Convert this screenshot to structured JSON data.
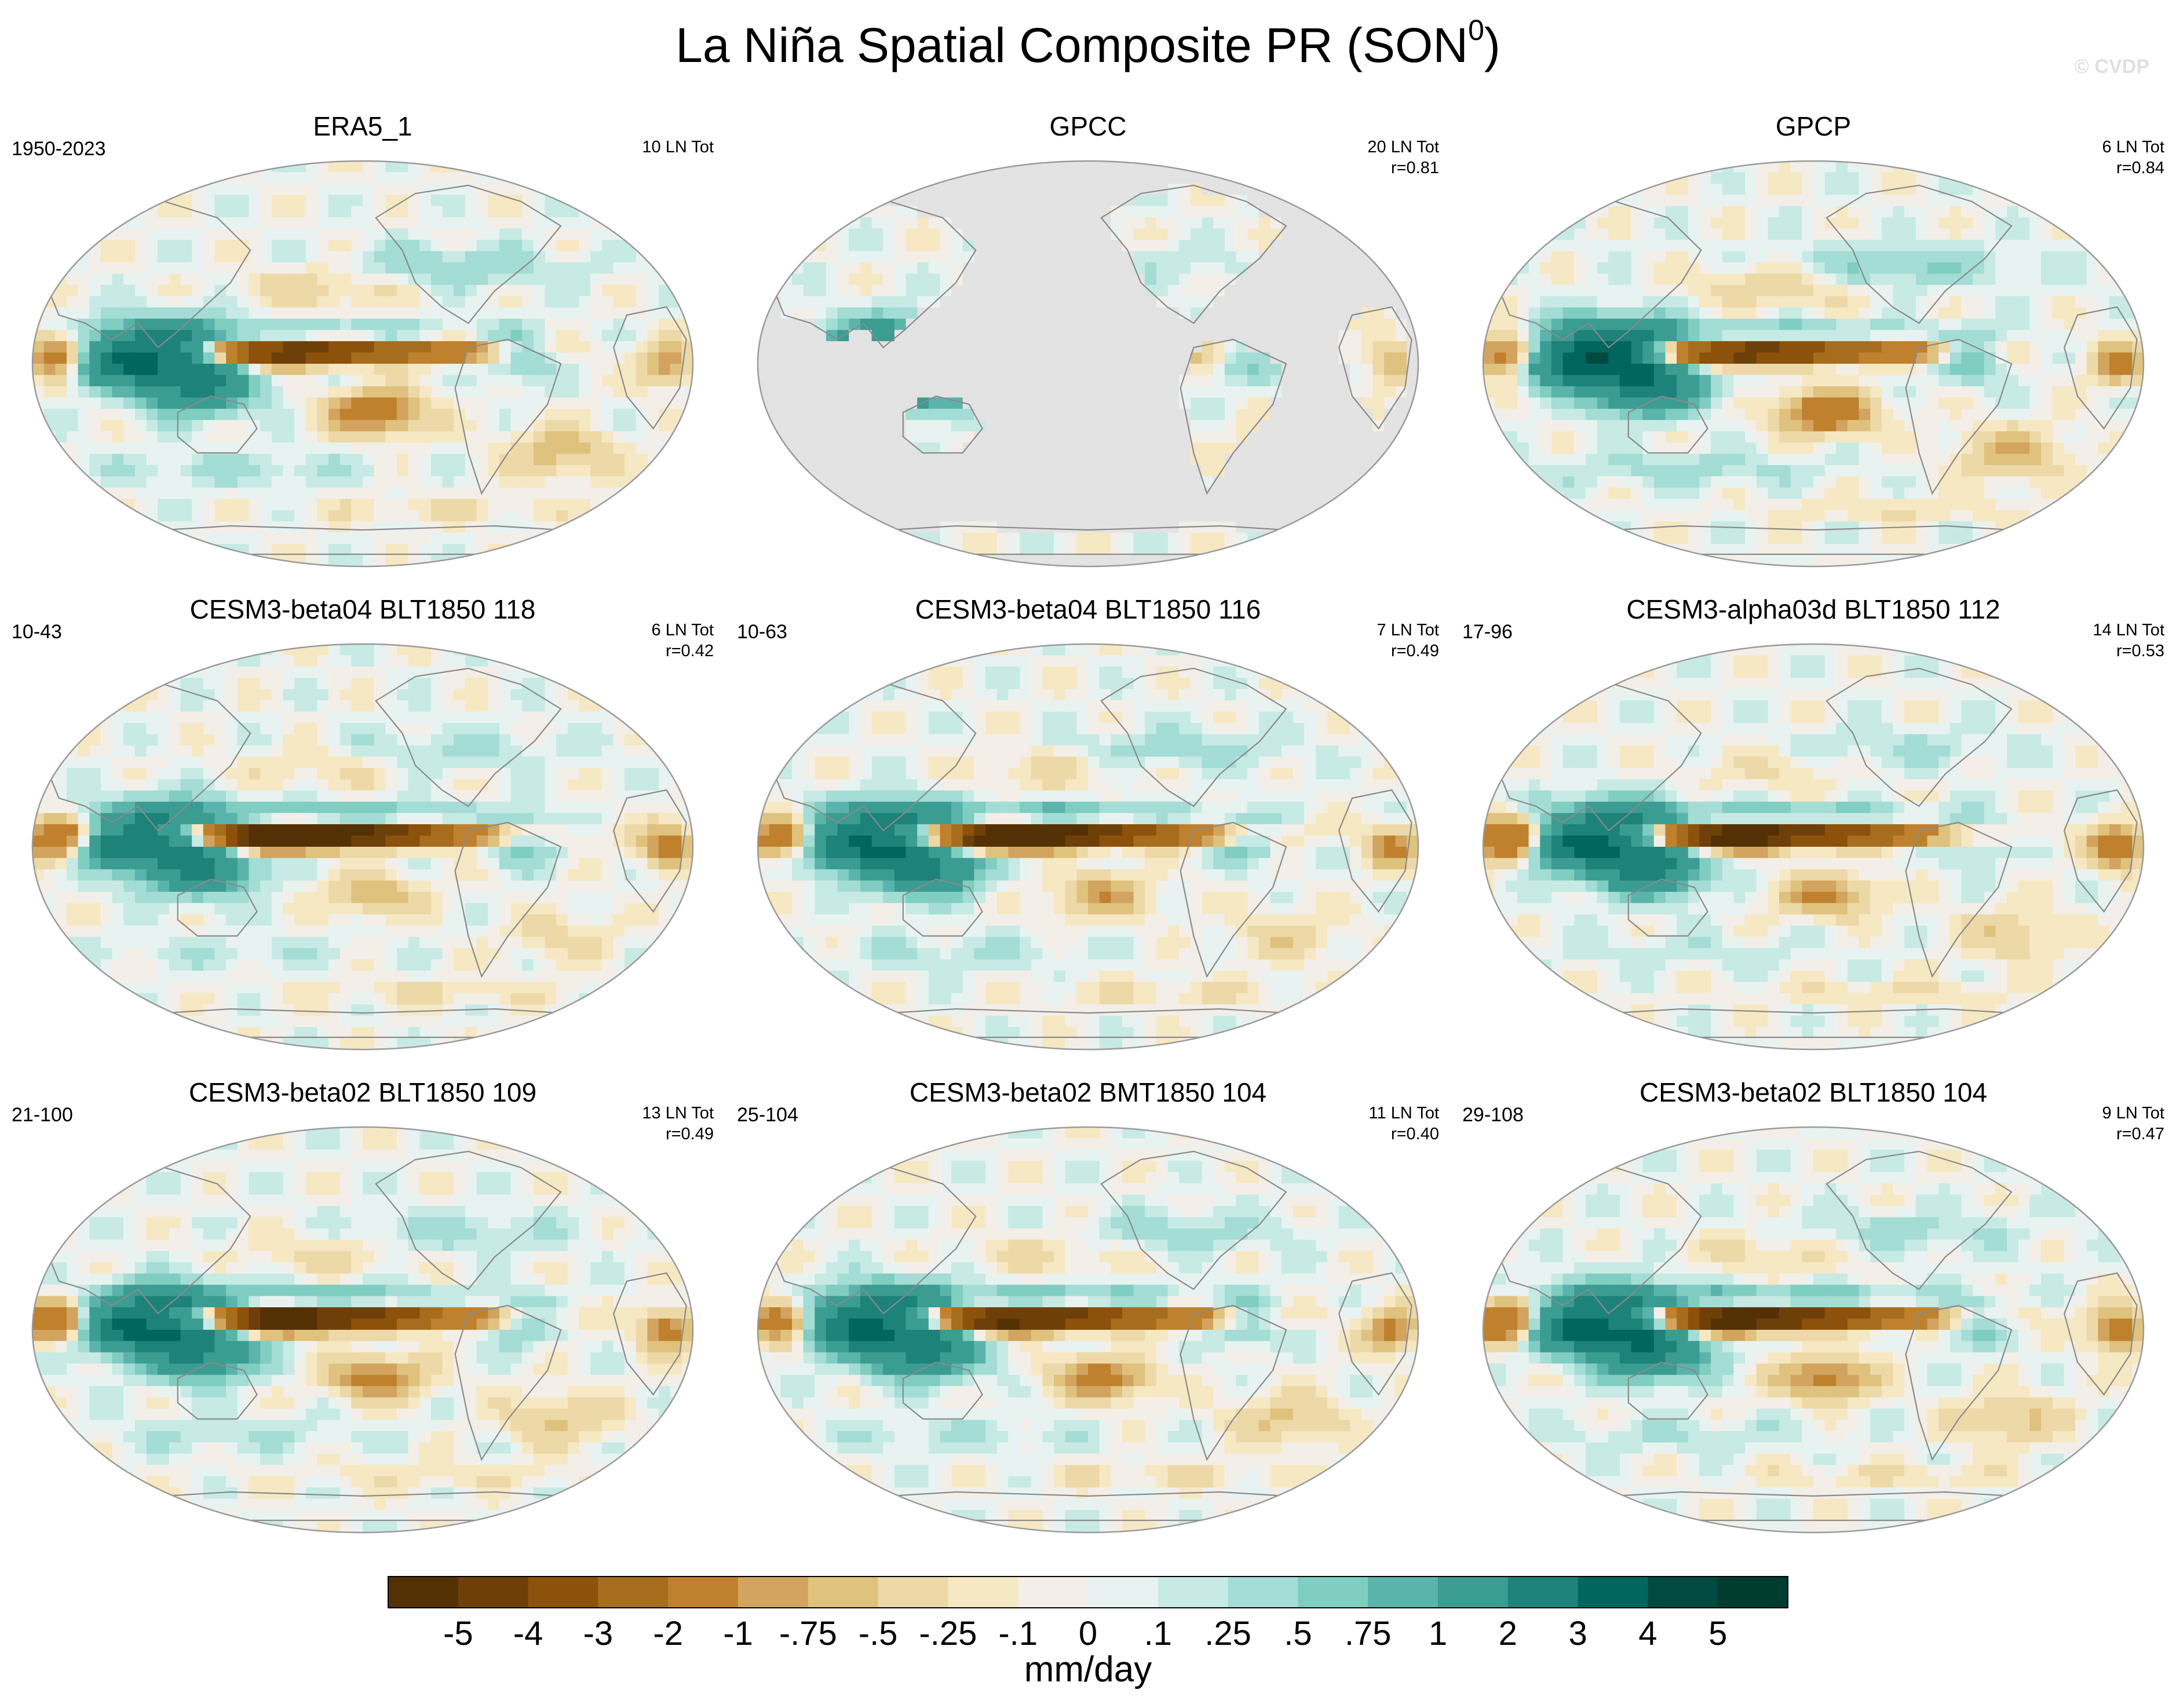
{
  "title_main": "La Niña Spatial Composite PR (SON",
  "title_sup": "0",
  "title_end": ")",
  "watermark": "© CVDP",
  "colors": {
    "ocean_missing": "#e3e3e3",
    "coast": "#8a8a8a",
    "outline": "#9a9a9a",
    "palette": [
      "#543005",
      "#6e4009",
      "#8c510a",
      "#a66d1f",
      "#bf812d",
      "#d2a45f",
      "#dfc27d",
      "#edd9a8",
      "#f6e8c3",
      "#f3efe8",
      "#e8f3f1",
      "#c7eae5",
      "#a3ddd5",
      "#80cdc1",
      "#5ab4ac",
      "#3b9c92",
      "#1d8279",
      "#01665e",
      "#014a42",
      "#003c30"
    ]
  },
  "chart_data": {
    "type": "heatmap",
    "title": "La Niña Spatial Composite PR (SON0)",
    "variable": "PR",
    "season": "SON",
    "colorbar": {
      "units": "mm/day",
      "ticks": [
        "-5",
        "-4",
        "-3",
        "-2",
        "-1",
        "-.75",
        "-.5",
        "-.25",
        "-.1",
        "0",
        ".1",
        ".25",
        ".5",
        ".75",
        "1",
        "2",
        "3",
        "4",
        "5"
      ]
    },
    "panels": [
      {
        "name": "ERA5_1",
        "years": "1950-2023",
        "events": "10 LN Tot",
        "corr": "",
        "land_only": false,
        "pattern": {
          "wp_wet": 1.0,
          "cp_dry": 1.0,
          "spcz_dry": 0.85,
          "io_east_dry": 0.7,
          "wio_dry": 0.7,
          "hemi_wet": 0.8,
          "amazon_wet": 0.5,
          "itcz_north_wet": 0.6
        }
      },
      {
        "name": "GPCC",
        "years": "",
        "events": "20 LN Tot",
        "corr": "r=0.81",
        "land_only": true,
        "pattern": {
          "wp_wet": 0.8,
          "cp_dry": 0.6,
          "spcz_dry": 0.5,
          "io_east_dry": 0.3,
          "wio_dry": 0.5,
          "hemi_wet": 0.3,
          "amazon_wet": 0.4,
          "itcz_north_wet": 0.2
        }
      },
      {
        "name": "GPCP",
        "years": "",
        "events": "6 LN Tot",
        "corr": "r=0.84",
        "land_only": false,
        "pattern": {
          "wp_wet": 1.2,
          "cp_dry": 1.0,
          "spcz_dry": 0.9,
          "io_east_dry": 0.8,
          "wio_dry": 0.8,
          "hemi_wet": 0.9,
          "amazon_wet": 0.6,
          "itcz_north_wet": 0.7
        }
      },
      {
        "name": "CESM3-beta04 BLT1850 118",
        "years": "10-43",
        "events": "6 LN Tot",
        "corr": "r=0.42",
        "land_only": false,
        "pattern": {
          "wp_wet": 0.9,
          "cp_dry": 1.6,
          "spcz_dry": 0.4,
          "io_east_dry": 0.9,
          "wio_dry": 0.9,
          "hemi_wet": 0.5,
          "amazon_wet": 0.6,
          "itcz_north_wet": 1.1
        }
      },
      {
        "name": "CESM3-beta04 BLT1850 116",
        "years": "10-63",
        "events": "7 LN Tot",
        "corr": "r=0.49",
        "land_only": false,
        "pattern": {
          "wp_wet": 1.0,
          "cp_dry": 1.5,
          "spcz_dry": 0.5,
          "io_east_dry": 0.8,
          "wio_dry": 0.8,
          "hemi_wet": 0.6,
          "amazon_wet": 0.5,
          "itcz_north_wet": 1.0
        }
      },
      {
        "name": "CESM3-alpha03d BLT1850 112",
        "years": "17-96",
        "events": "14 LN Tot",
        "corr": "r=0.53",
        "land_only": false,
        "pattern": {
          "wp_wet": 1.0,
          "cp_dry": 1.3,
          "spcz_dry": 0.6,
          "io_east_dry": 0.9,
          "wio_dry": 1.1,
          "hemi_wet": 0.5,
          "amazon_wet": 0.4,
          "itcz_north_wet": 0.9
        }
      },
      {
        "name": "CESM3-beta02 BLT1850 109",
        "years": "21-100",
        "events": "13 LN Tot",
        "corr": "r=0.49",
        "land_only": false,
        "pattern": {
          "wp_wet": 1.0,
          "cp_dry": 1.3,
          "spcz_dry": 0.7,
          "io_east_dry": 0.9,
          "wio_dry": 0.9,
          "hemi_wet": 0.6,
          "amazon_wet": 0.5,
          "itcz_north_wet": 0.9
        }
      },
      {
        "name": "CESM3-beta02 BMT1850 104",
        "years": "25-104",
        "events": "11 LN Tot",
        "corr": "r=0.40",
        "land_only": false,
        "pattern": {
          "wp_wet": 1.0,
          "cp_dry": 1.2,
          "spcz_dry": 0.7,
          "io_east_dry": 0.7,
          "wio_dry": 0.8,
          "hemi_wet": 0.6,
          "amazon_wet": 0.5,
          "itcz_north_wet": 0.9
        }
      },
      {
        "name": "CESM3-beta02 BLT1850 104",
        "years": "29-108",
        "events": "9 LN Tot",
        "corr": "r=0.47",
        "land_only": false,
        "pattern": {
          "wp_wet": 1.1,
          "cp_dry": 1.3,
          "spcz_dry": 0.7,
          "io_east_dry": 0.9,
          "wio_dry": 1.0,
          "hemi_wet": 0.6,
          "amazon_wet": 0.5,
          "itcz_north_wet": 1.0
        }
      }
    ]
  }
}
